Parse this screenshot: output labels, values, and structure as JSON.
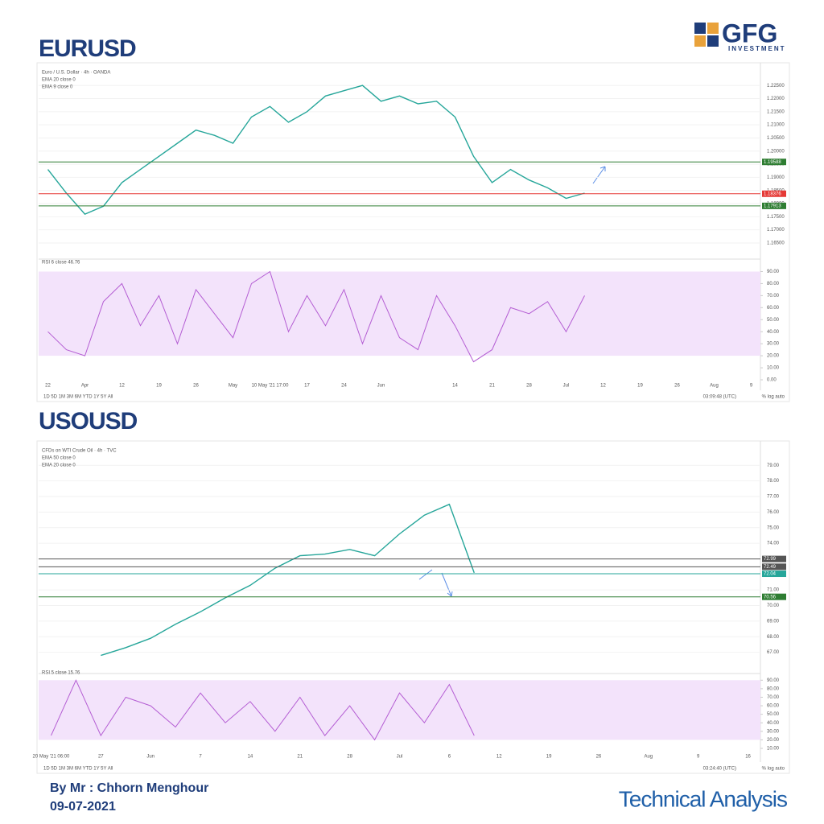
{
  "header": {
    "logo": "GFG",
    "logo_sub": "INVESTMENT"
  },
  "footer": {
    "author": "By Mr : Chhorn Menghour",
    "date": "09-07-2021",
    "label": "Technical Analysis"
  },
  "chart_data": [
    {
      "type": "line",
      "title": "EURUSD",
      "legend_lines": [
        "Euro / U.S. Dollar · 4h · OANDA",
        "EMA 20 close 0",
        "EMA 9 close 0"
      ],
      "categories": [
        "22",
        null,
        "Apr",
        null,
        "12",
        null,
        "19",
        null,
        "26",
        null,
        "May",
        null,
        "10 May '21 17:00",
        null,
        "17",
        null,
        "24",
        null,
        "Jun",
        null,
        null,
        null,
        "14",
        null,
        "21",
        null,
        "28",
        null,
        "Jul",
        null,
        "12",
        null,
        "19",
        null,
        "26",
        null,
        "Aug",
        null,
        "9"
      ],
      "values": [
        1.193,
        1.184,
        1.176,
        1.179,
        1.188,
        1.193,
        1.198,
        1.203,
        1.208,
        1.206,
        1.203,
        1.213,
        1.217,
        1.211,
        1.215,
        1.221,
        1.223,
        1.225,
        1.219,
        1.221,
        1.218,
        1.219,
        1.213,
        1.198,
        1.188,
        1.193,
        1.189,
        1.186,
        1.182,
        1.184,
        null,
        null,
        null,
        null,
        null,
        null,
        null,
        null,
        null
      ],
      "color": "#26a69a",
      "ylim": [
        1.161,
        1.2315
      ],
      "yticks": [
        {
          "value": 1.165,
          "label": "1.16500"
        },
        {
          "value": 1.17,
          "label": "1.17000"
        },
        {
          "value": 1.175,
          "label": "1.17500"
        },
        {
          "value": 1.18,
          "label": "1.18000"
        },
        {
          "value": 1.185,
          "label": "1.18500"
        },
        {
          "value": 1.19,
          "label": "1.19000"
        },
        {
          "value": 1.195,
          "label": "1.19500"
        },
        {
          "value": 1.2,
          "label": "1.20000"
        },
        {
          "value": 1.205,
          "label": "1.20500"
        },
        {
          "value": 1.21,
          "label": "1.21000"
        },
        {
          "value": 1.215,
          "label": "1.21500"
        },
        {
          "value": 1.22,
          "label": "1.22000"
        },
        {
          "value": 1.225,
          "label": "1.22500"
        }
      ],
      "grid": true,
      "levels": [
        {
          "value": 1.19588,
          "color": "#2e7d32"
        },
        {
          "value": 1.18376,
          "color": "#e53935"
        },
        {
          "value": 1.17913,
          "color": "#2e7d32"
        }
      ],
      "indicator": {
        "label": "RSI 6 close 46.76",
        "color": "#b45dd3",
        "band": [
          20,
          90
        ],
        "ylim": [
          0,
          95
        ],
        "values": [
          40,
          25,
          20,
          65,
          80,
          45,
          70,
          30,
          75,
          55,
          35,
          80,
          90,
          40,
          70,
          45,
          75,
          30,
          70,
          35,
          25,
          70,
          45,
          15,
          25,
          60,
          55,
          65,
          40,
          70,
          null,
          null,
          null,
          null,
          null,
          null,
          null,
          null,
          null
        ],
        "yticks": [
          {
            "value": 0,
            "label": "0.00"
          },
          {
            "value": 10,
            "label": "10.00"
          },
          {
            "value": 20,
            "label": "20.00"
          },
          {
            "value": 30,
            "label": "30.00"
          },
          {
            "value": 40,
            "label": "40.00"
          },
          {
            "value": 50,
            "label": "50.00"
          },
          {
            "value": 60,
            "label": "60.00"
          },
          {
            "value": 70,
            "label": "70.00"
          },
          {
            "value": 80,
            "label": "80.00"
          },
          {
            "value": 90,
            "label": "90.00"
          }
        ]
      },
      "toolbar": "1D 5D 1M 3M 6M YTD 1Y 5Y All",
      "time": "03:09:48 (UTC)",
      "scale_options": "% log auto"
    },
    {
      "type": "line",
      "title": "USOUSD",
      "legend_lines": [
        "CFDs on WTI Crude Oil · 4h · TVC",
        "EMA 50 close 0",
        "EMA 20 close 0"
      ],
      "categories": [
        "20 May '21 06:00",
        null,
        "27",
        null,
        "Jun",
        null,
        "7",
        null,
        "14",
        null,
        "21",
        null,
        "28",
        null,
        "Jul",
        null,
        "6",
        null,
        "12",
        null,
        "19",
        null,
        "26",
        null,
        "Aug",
        null,
        "9",
        null,
        "16"
      ],
      "values": [
        null,
        null,
        66.8,
        67.3,
        67.9,
        68.8,
        69.6,
        70.5,
        71.3,
        72.4,
        73.2,
        73.3,
        73.6,
        73.2,
        74.6,
        75.8,
        76.5,
        72.1,
        null,
        null,
        null,
        null,
        null,
        null,
        null,
        null,
        null,
        null,
        null
      ],
      "color": "#26a69a",
      "ylim": [
        66,
        80.2
      ],
      "yticks": [
        {
          "value": 67,
          "label": "67.00"
        },
        {
          "value": 68,
          "label": "68.00"
        },
        {
          "value": 69,
          "label": "69.00"
        },
        {
          "value": 70,
          "label": "70.00"
        },
        {
          "value": 71,
          "label": "71.00"
        },
        {
          "value": 74,
          "label": "74.00"
        },
        {
          "value": 75,
          "label": "75.00"
        },
        {
          "value": 76,
          "label": "76.00"
        },
        {
          "value": 77,
          "label": "77.00"
        },
        {
          "value": 78,
          "label": "78.00"
        },
        {
          "value": 79,
          "label": "79.00"
        }
      ],
      "grid": true,
      "levels": [
        {
          "value": 72.99,
          "color": "#555555"
        },
        {
          "value": 72.49,
          "color": "#555555"
        },
        {
          "value": 72.04,
          "color": "#26a69a"
        },
        {
          "value": 70.56,
          "color": "#2e7d32"
        }
      ],
      "indicator": {
        "label": "RSI 5 close 15.76",
        "color": "#b45dd3",
        "band": [
          20,
          90
        ],
        "ylim": [
          10,
          95
        ],
        "values": [
          25,
          90,
          25,
          70,
          60,
          35,
          75,
          40,
          65,
          30,
          70,
          25,
          60,
          20,
          75,
          40,
          85,
          25,
          null,
          null,
          null,
          null,
          null,
          null,
          null,
          null,
          null,
          null,
          null
        ],
        "yticks": [
          {
            "value": 10,
            "label": "10.00"
          },
          {
            "value": 20,
            "label": "20.00"
          },
          {
            "value": 30,
            "label": "30.00"
          },
          {
            "value": 40,
            "label": "40.00"
          },
          {
            "value": 50,
            "label": "50.00"
          },
          {
            "value": 60,
            "label": "60.00"
          },
          {
            "value": 70,
            "label": "70.00"
          },
          {
            "value": 80,
            "label": "80.00"
          },
          {
            "value": 90,
            "label": "90.00"
          }
        ]
      },
      "toolbar": "1D 5D 1M 3M 6M YTD 1Y 5Y All",
      "time": "03:24:40 (UTC)",
      "scale_options": "% log auto"
    }
  ]
}
